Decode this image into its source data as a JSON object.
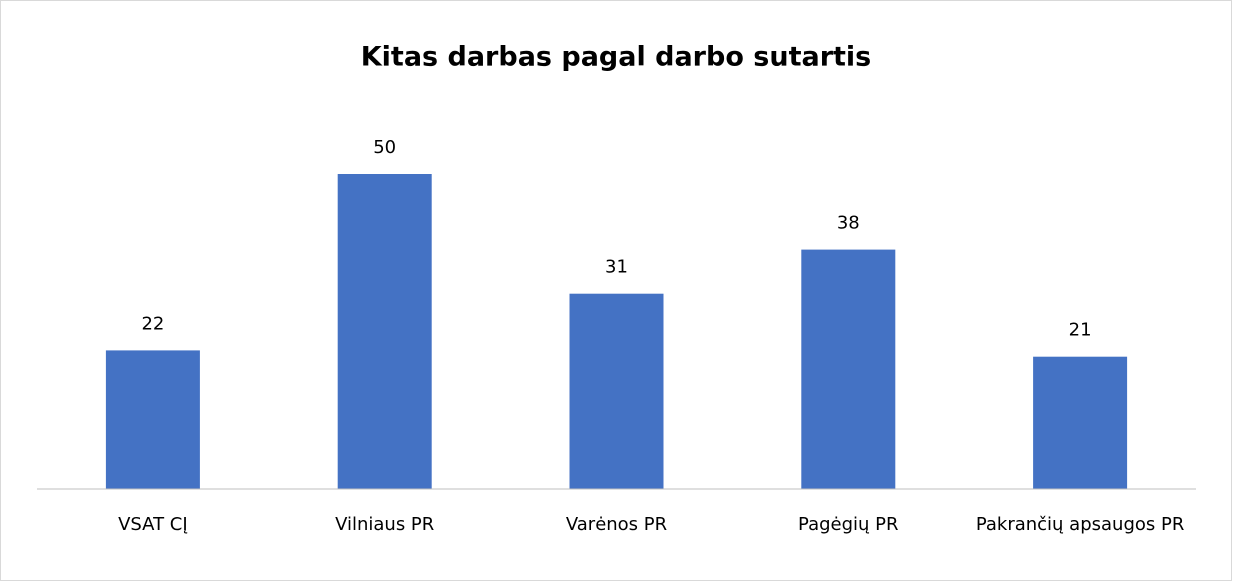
{
  "chart_data": {
    "type": "bar",
    "title": "Kitas darbas pagal darbo sutartis",
    "categories": [
      "VSAT CĮ",
      "Vilniaus PR",
      "Varėnos PR",
      "Pagėgių PR",
      "Pakrančių apsaugos PR"
    ],
    "values": [
      22,
      50,
      31,
      38,
      21
    ],
    "color": "#4472c4"
  }
}
